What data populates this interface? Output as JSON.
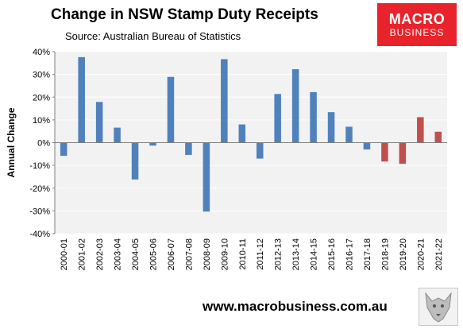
{
  "header": {
    "title": "Change in NSW Stamp Duty Receipts",
    "subtitle": "Source: Australian Bureau of Statistics"
  },
  "logo": {
    "line1": "MACRO",
    "line2": "BUSINESS"
  },
  "footer": {
    "url": "www.macrobusiness.com.au",
    "icon": "wolf-icon"
  },
  "colors": {
    "historical": "#4f81bd",
    "recent": "#c0504d",
    "plot_bg": "#f2f2f2",
    "grid": "#ffffff"
  },
  "chart_data": {
    "type": "bar",
    "title": "Change in NSW Stamp Duty Receipts",
    "ylabel": "Annual Change",
    "xlabel": "",
    "ylim": [
      -40,
      40
    ],
    "yticks": [
      40,
      30,
      20,
      10,
      0,
      -10,
      -20,
      -30,
      -40
    ],
    "ytick_labels": [
      "40%",
      "30%",
      "20%",
      "10%",
      "0%",
      "-10%",
      "-20%",
      "-30%",
      "-40%"
    ],
    "categories": [
      "2000-01",
      "2001-02",
      "2002-03",
      "2003-04",
      "2004-05",
      "2005-06",
      "2006-07",
      "2007-08",
      "2008-09",
      "2009-10",
      "2010-11",
      "2011-12",
      "2012-13",
      "2013-14",
      "2014-15",
      "2015-16",
      "2016-17",
      "2017-18",
      "2018-19",
      "2019-20",
      "2020-21",
      "2021-22"
    ],
    "values": [
      -5.8,
      37.6,
      17.9,
      6.6,
      -16.2,
      -1.3,
      28.9,
      -5.4,
      -30.3,
      36.7,
      8.0,
      -7.0,
      21.4,
      32.3,
      22.2,
      13.4,
      7.0,
      -3.0,
      -8.3,
      -9.3,
      11.2,
      4.8
    ],
    "highlight_from_index": 18,
    "grid": true,
    "legend": "none"
  }
}
